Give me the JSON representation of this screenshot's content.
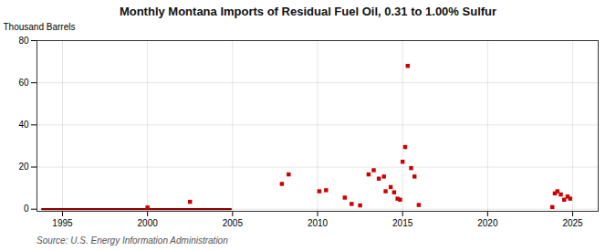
{
  "chart_data": {
    "type": "scatter",
    "title": "Monthly Montana Imports of Residual Fuel Oil, 0.31 to 1.00% Sulfur",
    "ylabel": "Thousand Barrels",
    "source": "Source: U.S. Energy Information Administration",
    "xlim": [
      1993.5,
      2026.5
    ],
    "ylim": [
      -1,
      80
    ],
    "xticks": [
      1995,
      2000,
      2005,
      2010,
      2015,
      2020,
      2025
    ],
    "yticks": [
      0,
      20,
      40,
      60,
      80
    ],
    "grid": true,
    "series": [
      {
        "type": "line",
        "color": "#8b0000",
        "line_style": "solid",
        "x": [
          1993.8,
          2004.9
        ],
        "values": [
          0,
          0
        ]
      },
      {
        "type": "scatter",
        "color": "#cc0000",
        "marker": "square",
        "x": [
          2000.0,
          2002.5,
          2007.9,
          2008.3,
          2010.1,
          2010.5,
          2011.6,
          2012.0,
          2012.5,
          2013.0,
          2013.3,
          2013.6,
          2013.9,
          2014.0,
          2014.3,
          2014.5,
          2014.7,
          2014.85,
          2015.0,
          2015.15,
          2015.3,
          2015.5,
          2015.7,
          2015.95,
          2023.8,
          2023.95,
          2024.1,
          2024.3,
          2024.5,
          2024.7,
          2024.85
        ],
        "values": [
          0.8,
          3.5,
          12.0,
          16.5,
          8.5,
          9.0,
          5.5,
          2.5,
          1.8,
          16.5,
          18.5,
          14.5,
          15.5,
          8.5,
          10.5,
          8.0,
          5.0,
          4.5,
          22.5,
          29.5,
          68.0,
          19.5,
          15.5,
          2.0,
          1.0,
          7.5,
          8.5,
          7.0,
          4.5,
          6.0,
          5.0
        ]
      }
    ]
  }
}
